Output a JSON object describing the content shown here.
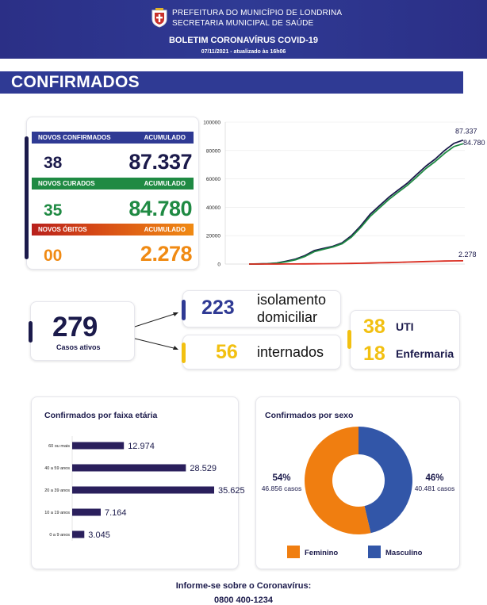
{
  "header": {
    "org_line1": "PREFEITURA DO MUNICÍPIO DE LONDRINA",
    "org_line2": "SECRETARIA MUNICIPAL DE SAÚDE",
    "bulletin_title": "BOLETIM CORONAVÍRUS COVID-19",
    "updated": "07/11/2021 - atualizado às 16h06"
  },
  "section_title": "CONFIRMADOS",
  "stats": {
    "confirmed": {
      "label": "NOVOS CONFIRMADOS",
      "acc_label": "ACUMULADO",
      "new": "38",
      "acc": "87.337"
    },
    "recovered": {
      "label": "NOVOS CURADOS",
      "acc_label": "ACUMULADO",
      "new": "35",
      "acc": "84.780"
    },
    "deaths": {
      "label": "NOVOS ÓBITOS",
      "acc_label": "ACUMULADO",
      "new": "00",
      "acc": "2.278"
    }
  },
  "active": {
    "value": "279",
    "label": "Casos ativos",
    "isolation": {
      "value": "223",
      "label_line1": "isolamento",
      "label_line2": "domiciliar"
    },
    "hospitalized": {
      "value": "56",
      "label": "internados"
    },
    "icu": {
      "value": "38",
      "label": "UTI"
    },
    "ward": {
      "value": "18",
      "label": "Enfermaria"
    }
  },
  "age_chart_title": "Confirmados por faixa etária",
  "sex_chart_title": "Confirmados por sexo",
  "footer": {
    "line1": "Informe-se sobre o Coronavírus:",
    "line2": "0800 400-1234"
  },
  "colors": {
    "navy": "#2f3a94",
    "dark": "#1b1a4b",
    "green": "#1f8a43",
    "orange": "#f08a13",
    "red": "#d92b1f",
    "yellow": "#f2c011"
  },
  "chart_data": [
    {
      "type": "line",
      "title": "",
      "yticks": [
        "0",
        "20000",
        "40000",
        "60000",
        "80000",
        "100000"
      ],
      "ylim": [
        0,
        100000
      ],
      "series": [
        {
          "color": "#1b1a4b",
          "values": [
            0,
            100,
            300,
            800,
            2000,
            3500,
            6000,
            9500,
            11000,
            12500,
            15000,
            20000,
            27000,
            35000,
            41000,
            47000,
            52000,
            57000,
            63000,
            69000,
            74000,
            80000,
            85000,
            87337
          ],
          "end_label": "87.337"
        },
        {
          "color": "#1f8a43",
          "values": [
            0,
            50,
            200,
            600,
            1600,
            3000,
            5300,
            8700,
            10400,
            12000,
            14300,
            19000,
            25800,
            33500,
            39500,
            45400,
            50500,
            55500,
            61300,
            67300,
            72300,
            78000,
            82800,
            84780
          ],
          "end_label": "84.780"
        },
        {
          "color": "#d92b1f",
          "values": [
            0,
            2,
            8,
            20,
            40,
            70,
            120,
            190,
            240,
            280,
            330,
            420,
            560,
            720,
            870,
            1020,
            1180,
            1380,
            1570,
            1760,
            1950,
            2110,
            2220,
            2278
          ],
          "end_label": "2.278"
        }
      ]
    },
    {
      "type": "bar",
      "title": "Confirmados por faixa etária",
      "orientation": "horizontal",
      "categories": [
        "60 ou mais",
        "40 a 59 anos",
        "20 a 39 anos",
        "10 a 19 anos",
        "0 a 9 anos"
      ],
      "values": [
        12974,
        28529,
        35625,
        7164,
        3045
      ],
      "value_labels": [
        "12.974",
        "28.529",
        "35.625",
        "7.164",
        "3.045"
      ],
      "color": "#2a1f5c"
    },
    {
      "type": "pie",
      "title": "Confirmados por sexo",
      "donut": true,
      "categories": [
        "Feminino",
        "Masculino"
      ],
      "values": [
        46856,
        40481
      ],
      "percent_labels": [
        "54%",
        "46%"
      ],
      "case_labels": [
        "46.856 casos",
        "40.481 casos"
      ],
      "colors": [
        "#f07e10",
        "#3256a8"
      ]
    }
  ]
}
